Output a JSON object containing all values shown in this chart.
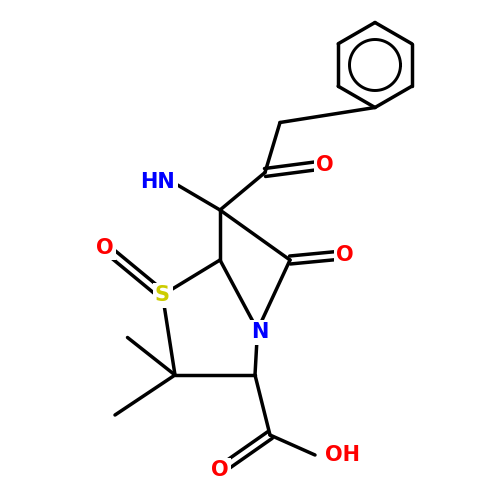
{
  "bg_color": "#ffffff",
  "bond_color": "#000000",
  "bond_lw": 2.5,
  "font_size": 15,
  "figsize": [
    5.0,
    5.0
  ],
  "dpi": 100,
  "colors": {
    "N": "#0000ff",
    "O": "#ff0000",
    "S": "#cccc00"
  },
  "xlim": [
    0,
    10
  ],
  "ylim": [
    0,
    10
  ]
}
